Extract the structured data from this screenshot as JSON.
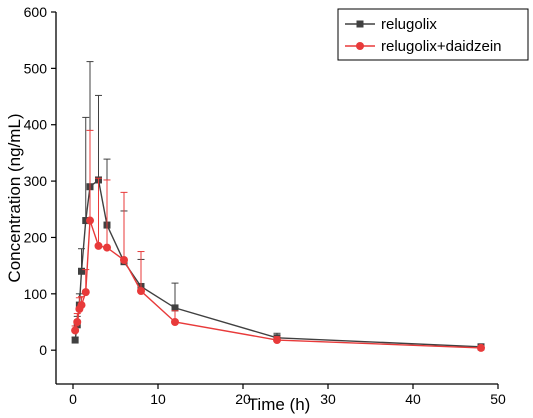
{
  "chart_data": {
    "type": "line",
    "xlabel": "Time (h)",
    "ylabel": "Concentration (ng/mL)",
    "xlim": [
      -2,
      50
    ],
    "ylim": [
      -60,
      600
    ],
    "xticks": [
      0,
      10,
      20,
      30,
      40,
      50
    ],
    "yticks": [
      0,
      100,
      200,
      300,
      400,
      500,
      600
    ],
    "grid": false,
    "legend_position": "top-right",
    "series": [
      {
        "name": "relugolix",
        "color": "#404040",
        "marker": "square",
        "x": [
          0.25,
          0.5,
          0.75,
          1,
          1.5,
          2,
          3,
          4,
          6,
          8,
          12,
          24,
          48
        ],
        "y": [
          18,
          45,
          80,
          140,
          230,
          290,
          302,
          222,
          157,
          113,
          75,
          22,
          6
        ],
        "error": [
          5,
          15,
          20,
          40,
          183,
          222,
          150,
          117,
          90,
          48,
          44,
          8,
          3
        ]
      },
      {
        "name": "relugolix+daidzein",
        "color": "#e83a3a",
        "marker": "circle",
        "x": [
          0.25,
          0.5,
          0.75,
          1,
          1.5,
          2,
          3,
          4,
          6,
          8,
          12,
          24,
          48
        ],
        "y": [
          35,
          50,
          73,
          80,
          103,
          230,
          185,
          182,
          160,
          105,
          50,
          18,
          4
        ],
        "error": [
          8,
          15,
          20,
          15,
          40,
          160,
          120,
          120,
          120,
          70,
          20,
          6,
          2
        ]
      }
    ]
  }
}
